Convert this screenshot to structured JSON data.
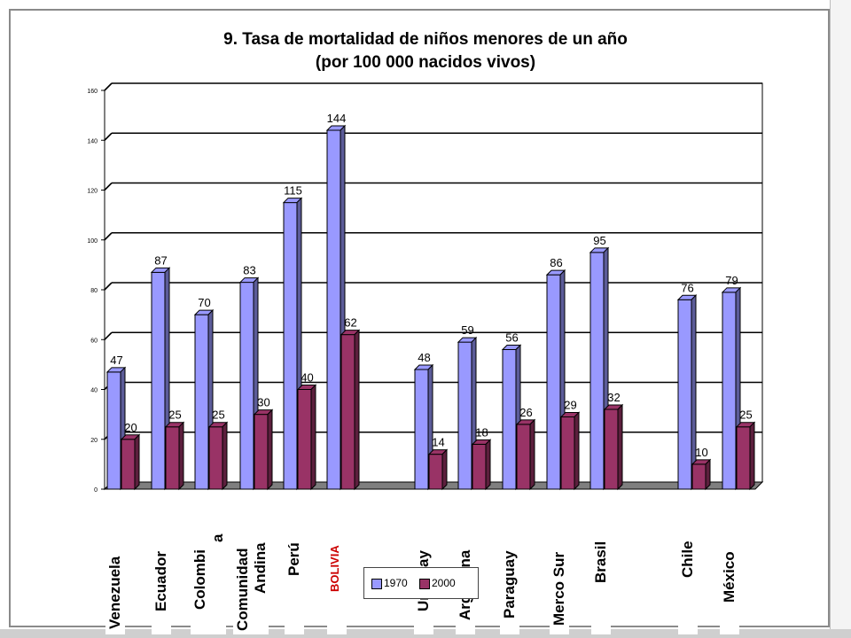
{
  "chart_data": {
    "type": "bar",
    "title": "9. Tasa de mortalidad de niños menores de un año",
    "subtitle": "(por 100 000 nacidos vivos)",
    "categories": [
      "Venezuela",
      "Ecuador",
      "Colombia",
      "Comunidad Andina",
      "Perú",
      "BOLIVIA",
      "Uruguay",
      "Argentina",
      "Paraguay",
      "Merco Sur",
      "Brasil",
      "Chile",
      "México"
    ],
    "series": [
      {
        "name": "1970",
        "color": "#9999ff",
        "values": [
          47,
          87,
          70,
          83,
          115,
          144,
          48,
          59,
          56,
          86,
          95,
          76,
          79
        ]
      },
      {
        "name": "2000",
        "color": "#993366",
        "values": [
          20,
          25,
          25,
          30,
          40,
          62,
          14,
          18,
          26,
          29,
          32,
          10,
          25
        ]
      }
    ],
    "ylim": [
      0,
      160
    ],
    "yticks": [
      0,
      20,
      40,
      60,
      80,
      100,
      120,
      140,
      160
    ],
    "grid": true,
    "legend_position": "bottom"
  },
  "overlay_labels": [
    {
      "name": "venezuela",
      "text": "Venezuela"
    },
    {
      "name": "ecuador",
      "text": "Ecuador"
    },
    {
      "name": "colombia",
      "text": "Colombi",
      "text2": "a"
    },
    {
      "name": "comunidad-andina",
      "text": "Comunidad",
      "text2": "Andina"
    },
    {
      "name": "peru",
      "text": "Perú"
    },
    {
      "name": "bolivia",
      "text": "BOLIVIA"
    },
    {
      "name": "uruguay",
      "text": "Uruguay"
    },
    {
      "name": "argentina",
      "text": "Argentina"
    },
    {
      "name": "paraguay",
      "text": "Paraguay"
    },
    {
      "name": "merco-sur",
      "text": "Merco Sur"
    },
    {
      "name": "brasil",
      "text": "Brasil"
    },
    {
      "name": "chile",
      "text": "Chile"
    },
    {
      "name": "mexico",
      "text": "México"
    }
  ],
  "legend": {
    "label_1970": "1970",
    "label_2000": "2000"
  },
  "colors": {
    "series1970": "#9999ff",
    "series2000": "#993366",
    "bolivia_label": "#cc0000",
    "gridline": "#000000"
  }
}
